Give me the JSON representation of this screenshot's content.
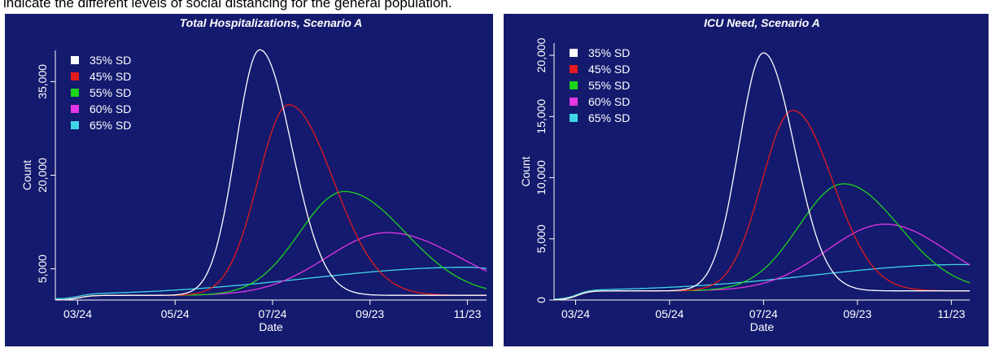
{
  "caption": "indicate the different levels of social distancing for the general population.",
  "colors": {
    "panel_bg": "#141a6e",
    "axis": "#ffffff",
    "text": "#ffffff",
    "series": [
      "#ffffff",
      "#e41a1c",
      "#1bd51b",
      "#e536e5",
      "#3fd6e6"
    ]
  },
  "chart_data": [
    {
      "type": "line",
      "title": "Total Hospitalizations, Scenario A",
      "xlabel": "Date",
      "ylabel": "Count",
      "x_ticks": [
        "03/24",
        "05/24",
        "07/24",
        "09/23",
        "11/23"
      ],
      "x_tick_days": [
        14,
        75,
        136,
        197,
        258
      ],
      "x_range_days": [
        0,
        270
      ],
      "y_ticks": [
        {
          "label": "5,000",
          "value": 5000
        },
        {
          "label": "20,000",
          "value": 20000
        },
        {
          "label": "35,000",
          "value": 35000
        }
      ],
      "y_range": [
        0,
        40000
      ],
      "grid": false,
      "legend_position": "top-left",
      "series": [
        {
          "name": "35% SD",
          "peak_day": 128,
          "peak": 40100,
          "width_left": 15,
          "width_right": 20
        },
        {
          "name": "45% SD",
          "peak_day": 146,
          "peak": 31300,
          "width_left": 19,
          "width_right": 28
        },
        {
          "name": "55% SD",
          "peak_day": 181,
          "peak": 17400,
          "width_left": 28,
          "width_right": 38
        },
        {
          "name": "60% SD",
          "peak_day": 208,
          "peak": 10800,
          "width_left": 38,
          "width_right": 45
        },
        {
          "name": "65% SD",
          "peak_day": 258,
          "peak": 5250,
          "width_left": 100,
          "width_right": 40
        }
      ]
    },
    {
      "type": "line",
      "title": "ICU Need, Scenario A",
      "xlabel": "Date",
      "ylabel": "Count",
      "x_ticks": [
        "03/24",
        "05/24",
        "07/24",
        "09/23",
        "11/23"
      ],
      "x_tick_days": [
        14,
        75,
        136,
        197,
        258
      ],
      "x_range_days": [
        0,
        270
      ],
      "y_ticks": [
        {
          "label": "0",
          "value": 0
        },
        {
          "label": "5,000",
          "value": 5000
        },
        {
          "label": "10,000",
          "value": 10000
        },
        {
          "label": "15,000",
          "value": 15000
        },
        {
          "label": "20,000",
          "value": 20000
        }
      ],
      "y_range": [
        0,
        21000
      ],
      "grid": false,
      "legend_position": "top-left",
      "series": [
        {
          "name": "35% SD",
          "peak_day": 136,
          "peak": 20200,
          "width_left": 16,
          "width_right": 20
        },
        {
          "name": "45% SD",
          "peak_day": 155,
          "peak": 15500,
          "width_left": 20,
          "width_right": 26
        },
        {
          "name": "55% SD",
          "peak_day": 188,
          "peak": 9500,
          "width_left": 29,
          "width_right": 36
        },
        {
          "name": "60% SD",
          "peak_day": 215,
          "peak": 6200,
          "width_left": 38,
          "width_right": 40
        },
        {
          "name": "65% SD",
          "peak_day": 265,
          "peak": 2900,
          "width_left": 95,
          "width_right": 40
        }
      ]
    }
  ]
}
